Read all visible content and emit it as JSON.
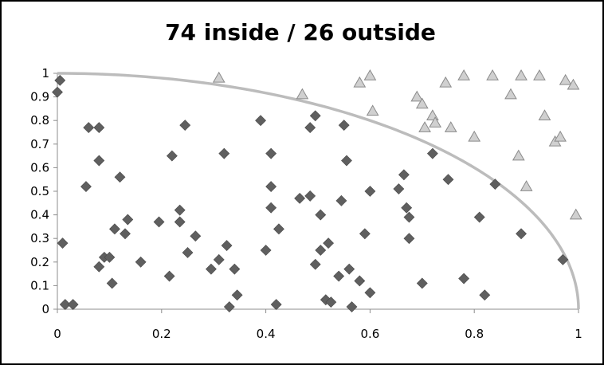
{
  "chart_data": {
    "type": "scatter",
    "title": "74 inside / 26 outside",
    "xlabel": "",
    "ylabel": "",
    "xlim": [
      0,
      1
    ],
    "ylim": [
      0,
      1
    ],
    "x_ticks": [
      0,
      0.2,
      0.4,
      0.6,
      0.8,
      1
    ],
    "x_tick_labels": [
      "0",
      "0.2",
      "0.4",
      "0.6",
      "0.8",
      "1"
    ],
    "y_ticks": [
      0,
      0.1,
      0.2,
      0.3,
      0.4,
      0.5,
      0.6,
      0.7,
      0.8,
      0.9,
      1
    ],
    "y_tick_labels": [
      "0",
      "0.1",
      "0.2",
      "0.3",
      "0.4",
      "0.5",
      "0.6",
      "0.7",
      "0.8",
      "0.9",
      "1"
    ],
    "grid": false,
    "legend": false,
    "colors": {
      "inside": "#5f5f5f",
      "outside": "#d0d0d0",
      "curve": "#bcbcbc"
    },
    "curve": {
      "type": "quarter-circle",
      "radius": 1
    },
    "series": [
      {
        "marker": "diamond",
        "points": [
          [
            0.005,
            0.97
          ],
          [
            0.0,
            0.92
          ],
          [
            0.01,
            0.28
          ],
          [
            0.015,
            0.02
          ],
          [
            0.03,
            0.02
          ],
          [
            0.055,
            0.52
          ],
          [
            0.06,
            0.77
          ],
          [
            0.08,
            0.77
          ],
          [
            0.08,
            0.63
          ],
          [
            0.08,
            0.18
          ],
          [
            0.09,
            0.22
          ],
          [
            0.1,
            0.22
          ],
          [
            0.105,
            0.11
          ],
          [
            0.11,
            0.34
          ],
          [
            0.12,
            0.56
          ],
          [
            0.13,
            0.32
          ],
          [
            0.135,
            0.38
          ],
          [
            0.16,
            0.2
          ],
          [
            0.195,
            0.37
          ],
          [
            0.215,
            0.14
          ],
          [
            0.22,
            0.65
          ],
          [
            0.235,
            0.42
          ],
          [
            0.235,
            0.37
          ],
          [
            0.245,
            0.78
          ],
          [
            0.25,
            0.24
          ],
          [
            0.265,
            0.31
          ],
          [
            0.295,
            0.17
          ],
          [
            0.31,
            0.21
          ],
          [
            0.32,
            0.66
          ],
          [
            0.325,
            0.27
          ],
          [
            0.33,
            0.01
          ],
          [
            0.34,
            0.17
          ],
          [
            0.345,
            0.06
          ],
          [
            0.39,
            0.8
          ],
          [
            0.4,
            0.25
          ],
          [
            0.41,
            0.43
          ],
          [
            0.41,
            0.52
          ],
          [
            0.41,
            0.66
          ],
          [
            0.42,
            0.02
          ],
          [
            0.425,
            0.34
          ],
          [
            0.465,
            0.47
          ],
          [
            0.485,
            0.77
          ],
          [
            0.485,
            0.48
          ],
          [
            0.495,
            0.82
          ],
          [
            0.495,
            0.19
          ],
          [
            0.505,
            0.4
          ],
          [
            0.505,
            0.25
          ],
          [
            0.515,
            0.04
          ],
          [
            0.52,
            0.28
          ],
          [
            0.525,
            0.03
          ],
          [
            0.54,
            0.14
          ],
          [
            0.545,
            0.46
          ],
          [
            0.55,
            0.78
          ],
          [
            0.555,
            0.63
          ],
          [
            0.56,
            0.17
          ],
          [
            0.565,
            0.01
          ],
          [
            0.58,
            0.12
          ],
          [
            0.59,
            0.32
          ],
          [
            0.6,
            0.07
          ],
          [
            0.6,
            0.5
          ],
          [
            0.655,
            0.51
          ],
          [
            0.665,
            0.57
          ],
          [
            0.67,
            0.43
          ],
          [
            0.675,
            0.39
          ],
          [
            0.675,
            0.3
          ],
          [
            0.7,
            0.11
          ],
          [
            0.72,
            0.66
          ],
          [
            0.75,
            0.55
          ],
          [
            0.78,
            0.13
          ],
          [
            0.81,
            0.39
          ],
          [
            0.82,
            0.06
          ],
          [
            0.84,
            0.53
          ],
          [
            0.89,
            0.32
          ],
          [
            0.97,
            0.21
          ]
        ]
      },
      {
        "marker": "triangle",
        "points": [
          [
            0.31,
            0.98
          ],
          [
            0.47,
            0.91
          ],
          [
            0.58,
            0.96
          ],
          [
            0.6,
            0.99
          ],
          [
            0.605,
            0.84
          ],
          [
            0.69,
            0.9
          ],
          [
            0.7,
            0.87
          ],
          [
            0.705,
            0.77
          ],
          [
            0.72,
            0.82
          ],
          [
            0.725,
            0.79
          ],
          [
            0.745,
            0.96
          ],
          [
            0.755,
            0.77
          ],
          [
            0.78,
            0.99
          ],
          [
            0.8,
            0.73
          ],
          [
            0.835,
            0.99
          ],
          [
            0.87,
            0.91
          ],
          [
            0.885,
            0.65
          ],
          [
            0.89,
            0.99
          ],
          [
            0.9,
            0.52
          ],
          [
            0.925,
            0.99
          ],
          [
            0.935,
            0.82
          ],
          [
            0.955,
            0.71
          ],
          [
            0.965,
            0.73
          ],
          [
            0.975,
            0.97
          ],
          [
            0.99,
            0.95
          ],
          [
            0.995,
            0.4
          ]
        ]
      }
    ]
  }
}
